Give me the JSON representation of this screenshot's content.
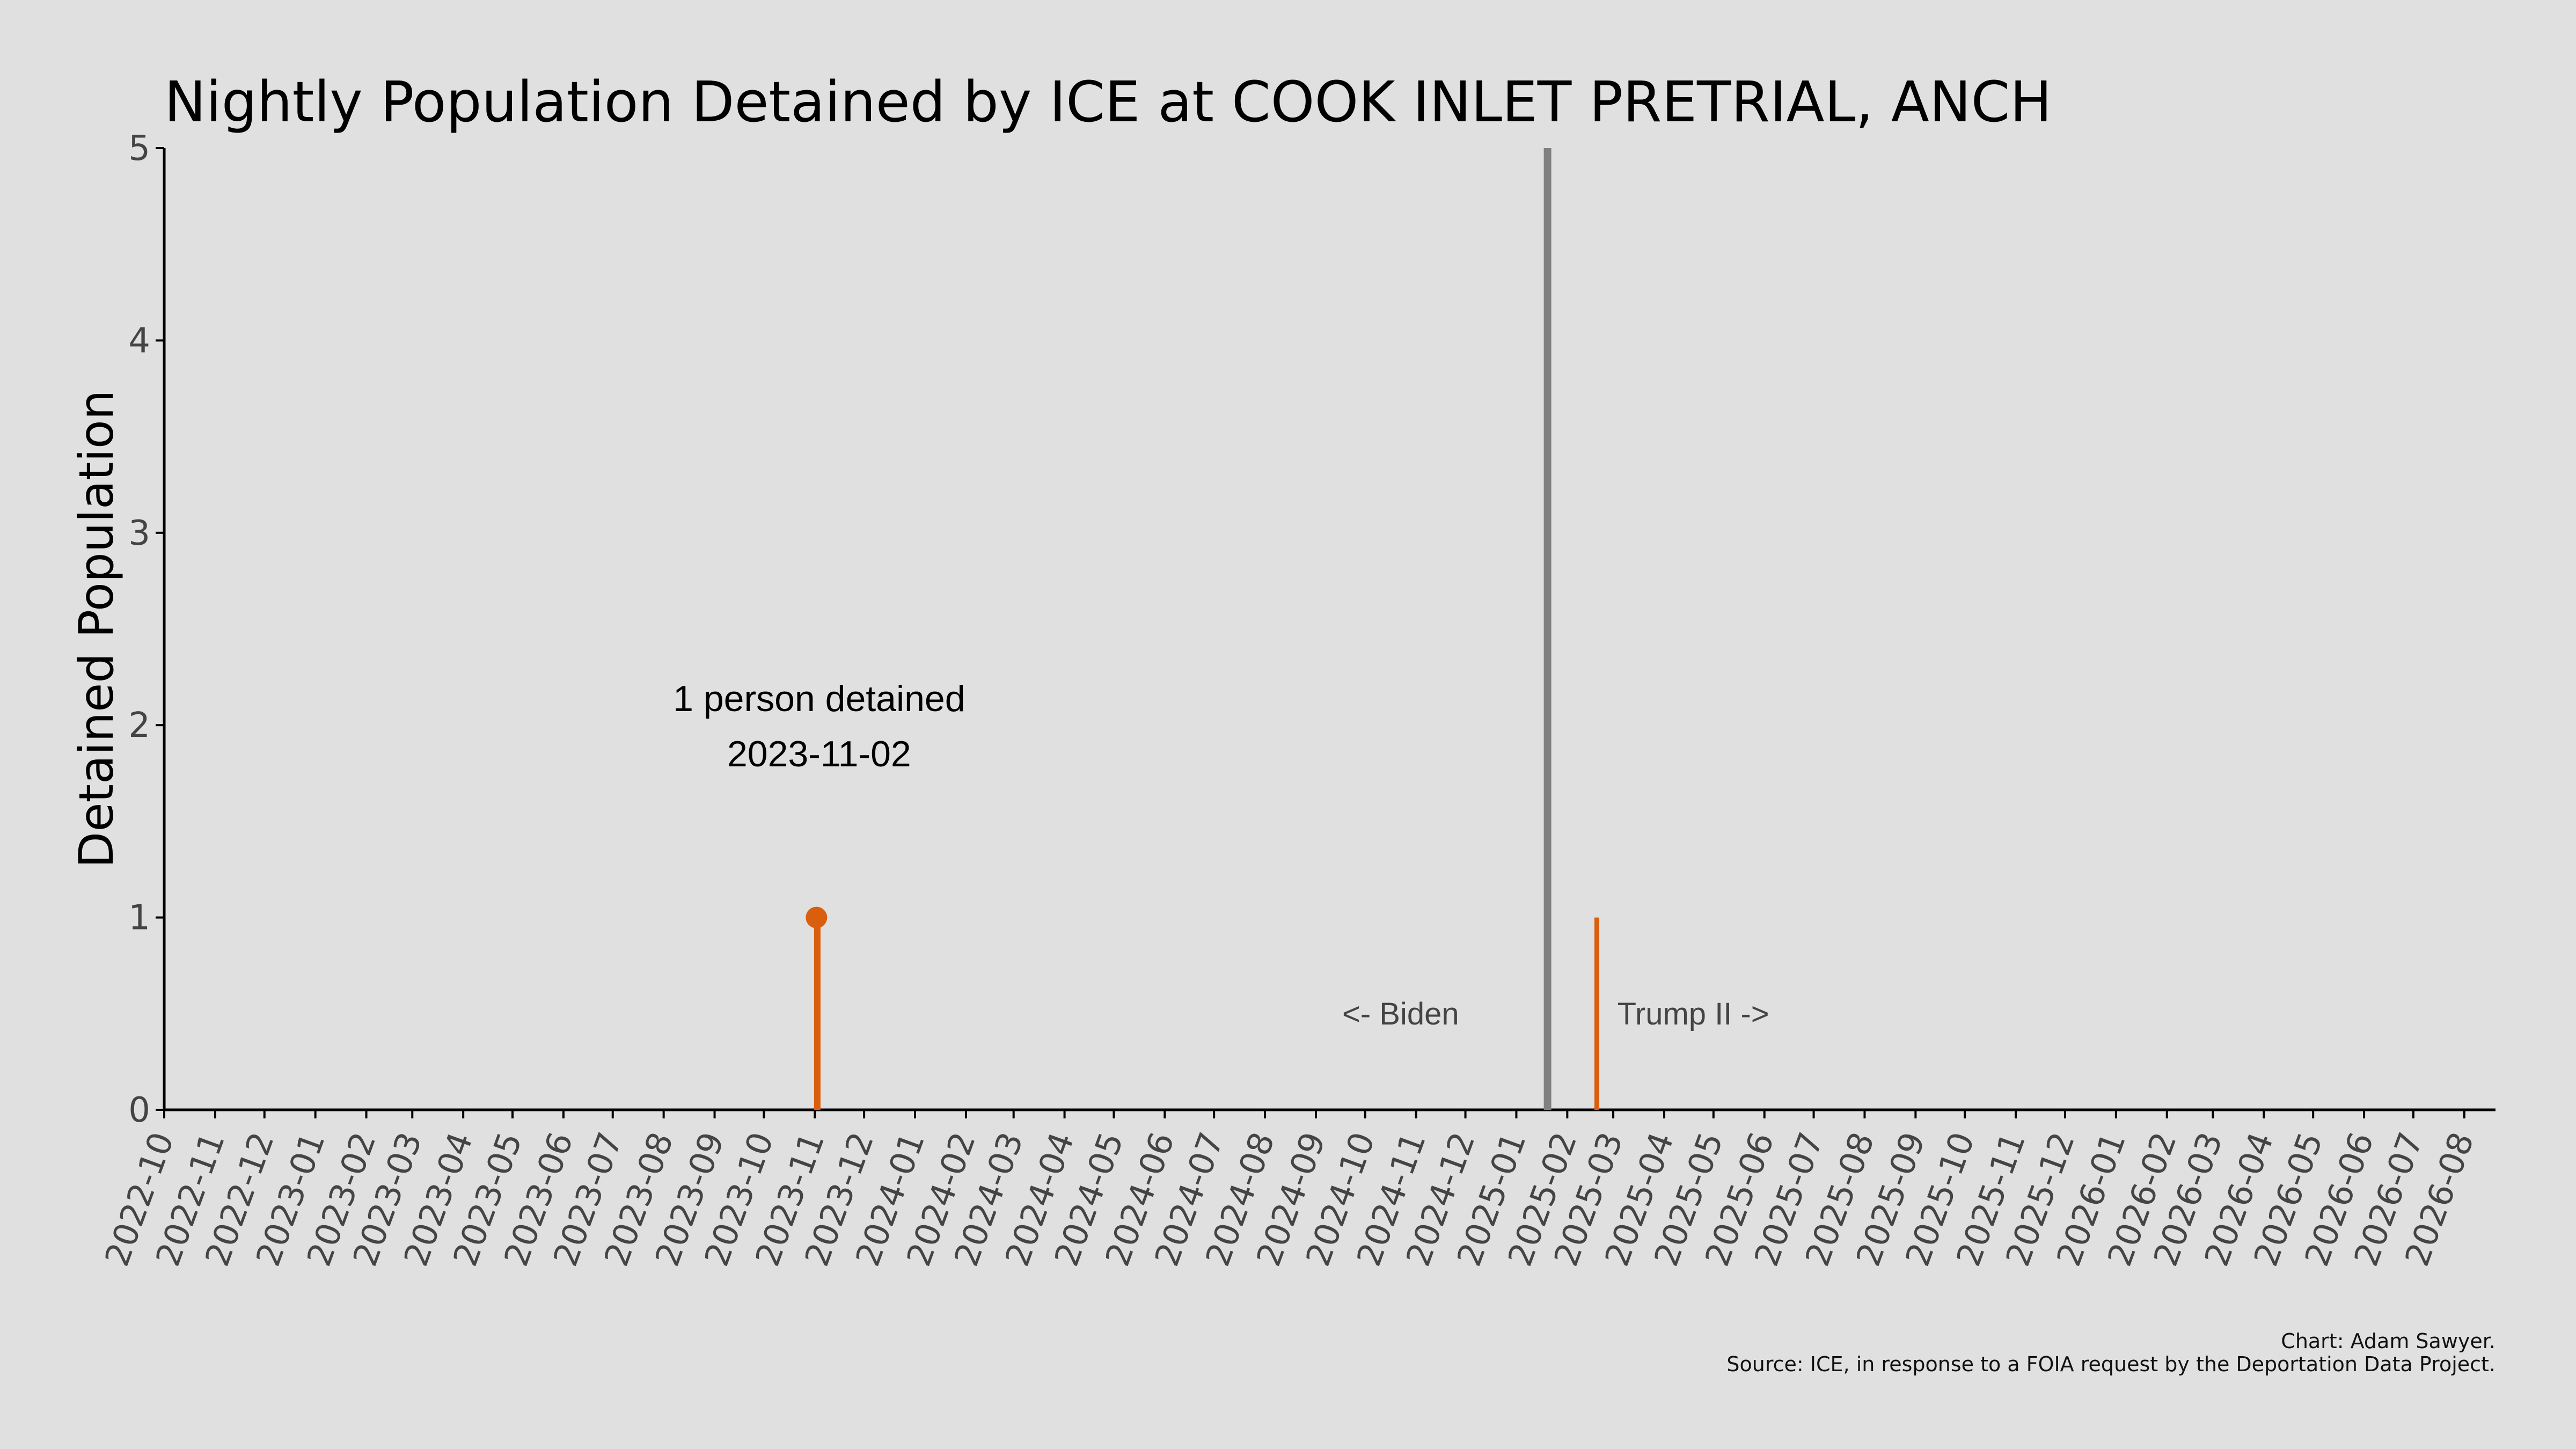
{
  "chart_data": {
    "type": "line",
    "title": "Nightly Population Detained by ICE at COOK INLET PRETRIAL, ANCH",
    "xlabel": "",
    "ylabel": "Detained Population",
    "x_range": [
      "2022-10-01",
      "2026-08-20"
    ],
    "ylim": [
      0,
      5
    ],
    "y_ticks": [
      0,
      1,
      2,
      3,
      4,
      5
    ],
    "x_ticks": [
      "2022-10",
      "2022-11",
      "2022-12",
      "2023-01",
      "2023-02",
      "2023-03",
      "2023-04",
      "2023-05",
      "2023-06",
      "2023-07",
      "2023-08",
      "2023-09",
      "2023-10",
      "2023-11",
      "2023-12",
      "2024-01",
      "2024-02",
      "2024-03",
      "2024-04",
      "2024-05",
      "2024-06",
      "2024-07",
      "2024-08",
      "2024-09",
      "2024-10",
      "2024-11",
      "2024-12",
      "2025-01",
      "2025-02",
      "2025-03",
      "2025-04",
      "2025-05",
      "2025-06",
      "2025-07",
      "2025-08",
      "2025-09",
      "2025-10",
      "2025-11",
      "2025-12",
      "2026-01",
      "2026-02",
      "2026-03",
      "2026-04",
      "2026-05",
      "2026-06",
      "2026-07",
      "2026-08"
    ],
    "grid": false,
    "series": [
      {
        "color": "#d95f0e",
        "points": [
          {
            "x": "2023-11-02",
            "y": 1
          },
          {
            "x": "2023-11-03",
            "y": 1
          },
          {
            "x": "2025-02-19",
            "y": 1
          }
        ]
      }
    ],
    "highlight_point": {
      "x": "2023-11-02",
      "y": 1
    },
    "annotation": {
      "line1": "1 person detained",
      "line2": "2023-11-02"
    },
    "divider": {
      "x": "2025-01-20",
      "color": "#808080"
    },
    "era_labels": {
      "left": "<- Biden",
      "right": "Trump II ->"
    },
    "credit": {
      "line1": "Chart: Adam Sawyer.",
      "line2": "Source: ICE, in response to a FOIA request by the Deportation Data Project."
    }
  }
}
